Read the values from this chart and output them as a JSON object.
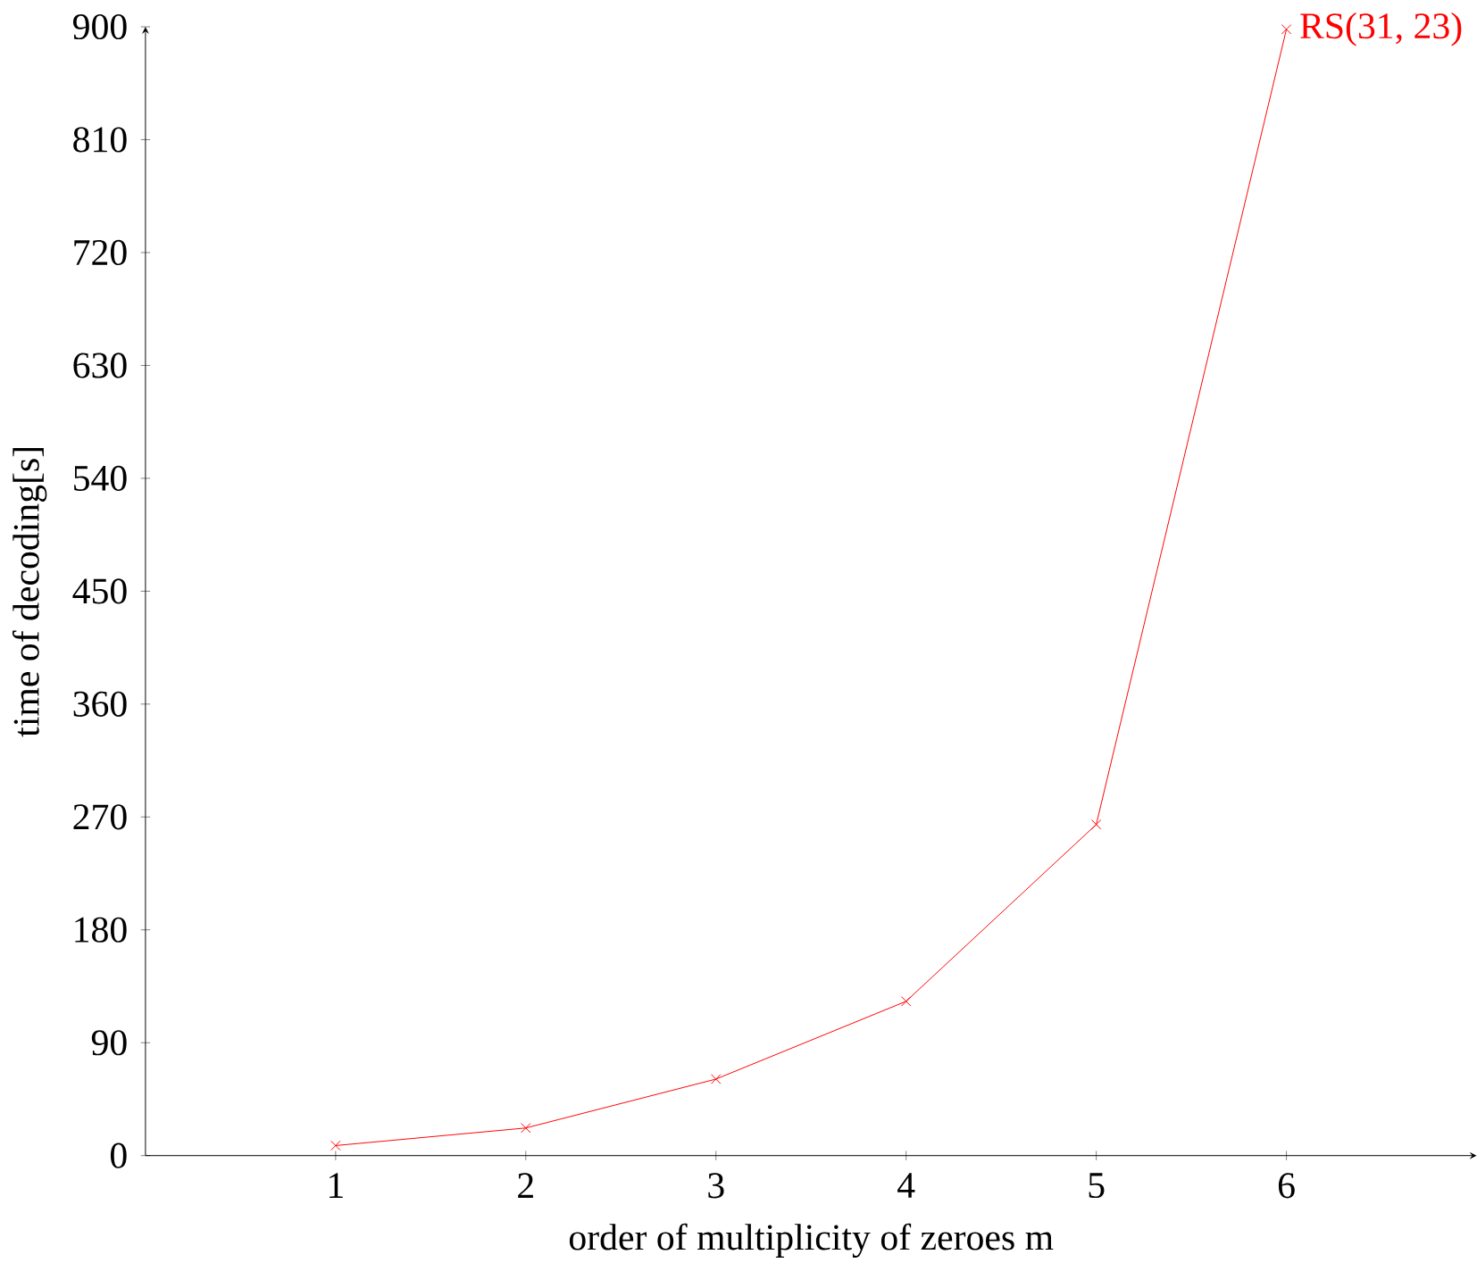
{
  "chart_data": {
    "type": "line",
    "xlabel": "order of multiplicity of zeroes m",
    "ylabel": "time of decoding[s]",
    "x": [
      1,
      2,
      3,
      4,
      5,
      6
    ],
    "series": [
      {
        "name": "RS(31, 23)",
        "color": "#ff0000",
        "values": [
          8,
          22,
          61,
          123,
          264,
          898
        ]
      }
    ],
    "xlim": [
      0,
      7
    ],
    "ylim": [
      0,
      900
    ],
    "xticks": [
      1,
      2,
      3,
      4,
      5,
      6
    ],
    "yticks": [
      0,
      90,
      180,
      270,
      360,
      450,
      540,
      630,
      720,
      810,
      900
    ],
    "marker": "cross",
    "line_style": "solid",
    "grid": false,
    "legend": false
  }
}
